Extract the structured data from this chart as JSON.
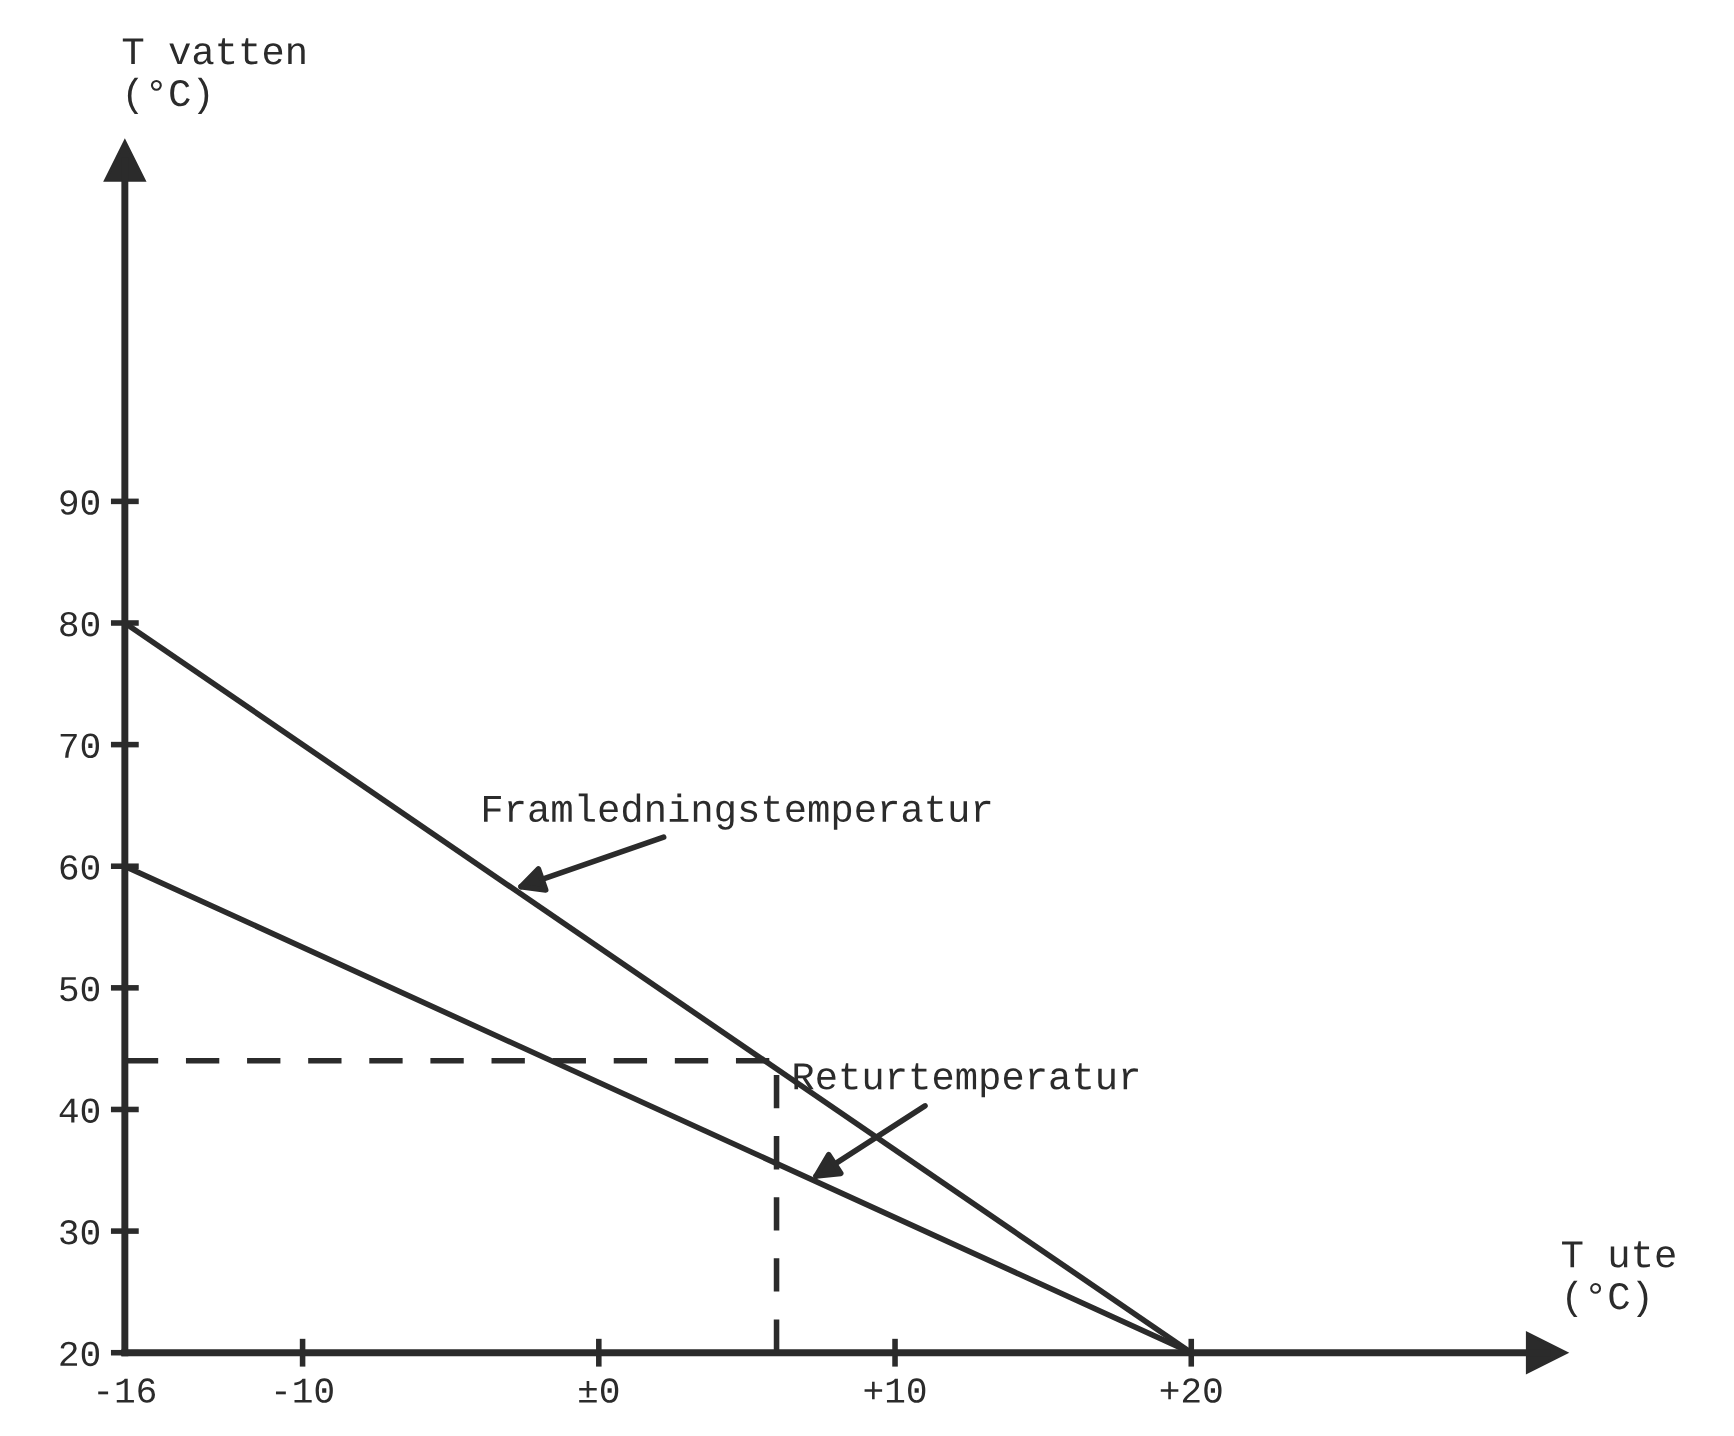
{
  "chart_data": {
    "type": "line",
    "xlabel": "T ute\n(°C)",
    "ylabel": "T vatten\n(°C)",
    "series": [
      {
        "color": "#2b2b2b",
        "values": [
          80,
          20
        ]
      },
      {
        "color": "#2b2b2b",
        "values": [
          60,
          20
        ]
      }
    ],
    "x": [
      -16,
      20
    ],
    "annotations": [
      {
        "text": "Framledningstemperatur",
        "x": -3,
        "y": 58
      },
      {
        "text": "Returtemperatur",
        "x": 7,
        "y": 34
      }
    ],
    "ref_lines": [
      {
        "axis": "y",
        "value": 44,
        "color": "#2b2b2b",
        "line_style": "dashed"
      },
      {
        "axis": "x",
        "value": 6,
        "color": "#2b2b2b",
        "line_style": "dashed"
      }
    ],
    "xlim": [
      -16,
      32
    ],
    "ylim": [
      20,
      118
    ],
    "xticks": [
      -16,
      -10,
      {
        "value": 0,
        "label": "±0"
      },
      {
        "value": 10,
        "label": "+10"
      },
      {
        "value": 20,
        "label": "+20"
      }
    ],
    "yticks": [
      20,
      30,
      40,
      50,
      60,
      70,
      80,
      90
    ],
    "grid": false,
    "legend": false,
    "marker": "none",
    "line_style": "solid"
  }
}
